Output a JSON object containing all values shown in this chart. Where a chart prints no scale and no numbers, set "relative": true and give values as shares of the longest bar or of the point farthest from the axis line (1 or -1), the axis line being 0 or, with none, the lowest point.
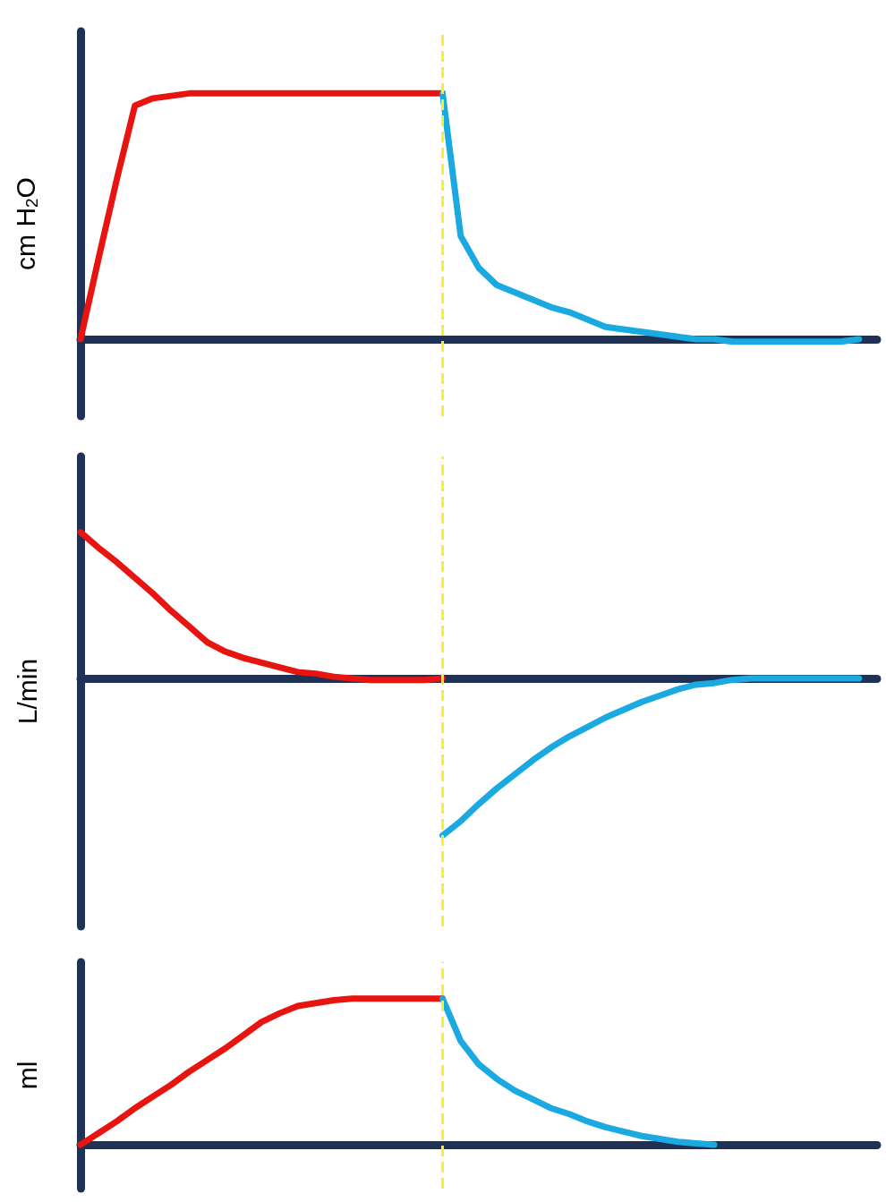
{
  "chart_data": [
    {
      "type": "line",
      "ylabel": "cm H$_{2}$O",
      "relative": true,
      "marker": "none",
      "categories": [
        null,
        null,
        null,
        null,
        null,
        null,
        null,
        null,
        null,
        null,
        null,
        null,
        null,
        null,
        null,
        null,
        null,
        null,
        null,
        null,
        null,
        null,
        null,
        null,
        null,
        null,
        null,
        null,
        null,
        null,
        null,
        null,
        null,
        null,
        null,
        null,
        null,
        null,
        null,
        null,
        null,
        null,
        null,
        null,
        null
      ],
      "series": [
        {
          "color": "#e8140f",
          "values": [
            0,
            0.33,
            0.65,
            0.95,
            0.98,
            0.99,
            1,
            1,
            1,
            1,
            1,
            1,
            1,
            1,
            1,
            1,
            1,
            1,
            1,
            1,
            1,
            null,
            null,
            null,
            null,
            null,
            null,
            null,
            null,
            null,
            null,
            null,
            null,
            null,
            null,
            null,
            null,
            null,
            null,
            null,
            null,
            null,
            null,
            null,
            null
          ]
        },
        {
          "color": "#1ba9e1",
          "values": [
            null,
            null,
            null,
            null,
            null,
            null,
            null,
            null,
            null,
            null,
            null,
            null,
            null,
            null,
            null,
            null,
            null,
            null,
            null,
            null,
            1,
            0.42,
            0.29,
            0.22,
            0.19,
            0.16,
            0.13,
            0.11,
            0.08,
            0.05,
            0.04,
            0.03,
            0.02,
            0.01,
            0,
            0,
            -0.01,
            -0.01,
            -0.01,
            -0.01,
            -0.01,
            -0.01,
            -0.01,
            0,
            null
          ]
        }
      ]
    },
    {
      "type": "line",
      "ylabel": "L/min",
      "relative": true,
      "marker": "none",
      "categories": [
        null,
        null,
        null,
        null,
        null,
        null,
        null,
        null,
        null,
        null,
        null,
        null,
        null,
        null,
        null,
        null,
        null,
        null,
        null,
        null,
        null,
        null,
        null,
        null,
        null,
        null,
        null,
        null,
        null,
        null,
        null,
        null,
        null,
        null,
        null,
        null,
        null,
        null,
        null,
        null,
        null,
        null,
        null,
        null,
        null
      ],
      "series": [
        {
          "color": "#e8140f",
          "values": [
            0.93,
            0.83,
            0.74,
            0.64,
            0.54,
            0.43,
            0.33,
            0.23,
            0.17,
            0.13,
            0.1,
            0.07,
            0.04,
            0.03,
            0.01,
            0,
            -0.01,
            -0.01,
            -0.01,
            -0.01,
            0,
            null,
            null,
            null,
            null,
            null,
            null,
            null,
            null,
            null,
            null,
            null,
            null,
            null,
            null,
            null,
            null,
            null,
            null,
            null,
            null,
            null,
            null,
            null,
            null
          ]
        },
        {
          "color": "#1ba9e1",
          "values": [
            null,
            null,
            null,
            null,
            null,
            null,
            null,
            null,
            null,
            null,
            null,
            null,
            null,
            null,
            null,
            null,
            null,
            null,
            null,
            null,
            -1,
            -0.91,
            -0.8,
            -0.7,
            -0.61,
            -0.52,
            -0.44,
            -0.37,
            -0.31,
            -0.25,
            -0.2,
            -0.15,
            -0.11,
            -0.07,
            -0.04,
            -0.03,
            -0.01,
            0,
            0,
            0,
            0,
            0,
            0,
            0,
            null
          ]
        }
      ]
    },
    {
      "type": "line",
      "ylabel": "ml",
      "relative": true,
      "marker": "none",
      "categories": [
        null,
        null,
        null,
        null,
        null,
        null,
        null,
        null,
        null,
        null,
        null,
        null,
        null,
        null,
        null,
        null,
        null,
        null,
        null,
        null,
        null,
        null,
        null,
        null,
        null,
        null,
        null,
        null,
        null,
        null,
        null,
        null,
        null,
        null,
        null,
        null,
        null,
        null,
        null,
        null,
        null,
        null,
        null,
        null,
        null
      ],
      "series": [
        {
          "color": "#e8140f",
          "values": [
            0,
            0.08,
            0.16,
            0.25,
            0.33,
            0.41,
            0.5,
            0.58,
            0.66,
            0.75,
            0.84,
            0.9,
            0.95,
            0.97,
            0.99,
            1,
            1,
            1,
            1,
            1,
            1,
            null,
            null,
            null,
            null,
            null,
            null,
            null,
            null,
            null,
            null,
            null,
            null,
            null,
            null,
            null,
            null,
            null,
            null,
            null,
            null,
            null,
            null,
            null,
            null
          ]
        },
        {
          "color": "#1ba9e1",
          "values": [
            null,
            null,
            null,
            null,
            null,
            null,
            null,
            null,
            null,
            null,
            null,
            null,
            null,
            null,
            null,
            null,
            null,
            null,
            null,
            null,
            1,
            0.71,
            0.55,
            0.45,
            0.37,
            0.31,
            0.25,
            0.21,
            0.16,
            0.12,
            0.09,
            0.06,
            0.04,
            0.02,
            0.01,
            0,
            null,
            null,
            null,
            null,
            null,
            null,
            null,
            null,
            null
          ]
        }
      ]
    }
  ]
}
